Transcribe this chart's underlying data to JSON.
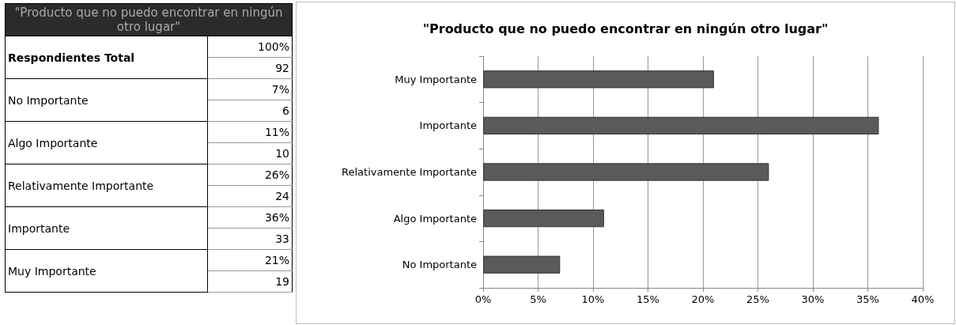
{
  "chart_data": [
    {
      "type": "other",
      "title": "\"Producto que no puedo encontrar en ningún otro lugar\"",
      "annotations": [
        "Respondientes Total",
        "100%",
        "92",
        "No Importante",
        "7%",
        "6",
        "Algo Importante",
        "11%",
        "10",
        "Relativamente Importante",
        "26%",
        "24",
        "Importante",
        "36%",
        "33",
        "Muy Importante",
        "21%",
        "19"
      ]
    },
    {
      "type": "bar",
      "orientation": "horizontal",
      "title": "\"Producto que no puedo encontrar en ningún otro lugar\"",
      "categories": [
        "Muy Importante",
        "Importante",
        "Relativamente Importante",
        "Algo Importante",
        "No Importante"
      ],
      "values": [
        21,
        36,
        26,
        11,
        7
      ],
      "color": "#5a5a5a",
      "xlim": [
        0,
        40
      ],
      "xticks": [
        {
          "value": 0,
          "label": "0%"
        },
        {
          "value": 5,
          "label": "5%"
        },
        {
          "value": 10,
          "label": "10%"
        },
        {
          "value": 15,
          "label": "15%"
        },
        {
          "value": 20,
          "label": "20%"
        },
        {
          "value": 25,
          "label": "25%"
        },
        {
          "value": 30,
          "label": "30%"
        },
        {
          "value": 35,
          "label": "35%"
        },
        {
          "value": 40,
          "label": "40%"
        }
      ],
      "grid": "x"
    }
  ]
}
